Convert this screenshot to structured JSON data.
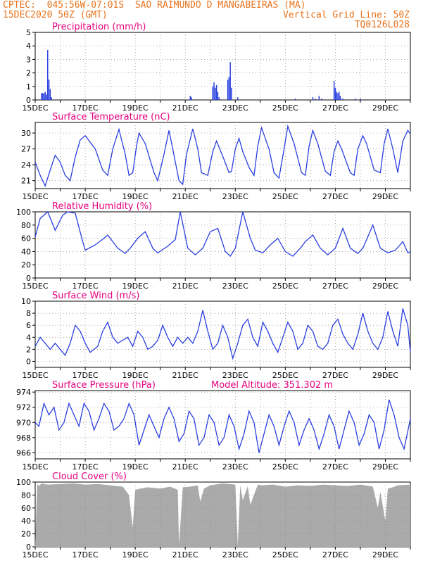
{
  "header": {
    "line1": "CPTEC:  045:56W-07:01S  SAO RAIMUNDO D MANGABEIRAS (MA)",
    "line2_left": "15DEC2020 50Z (GMT)",
    "line2_right": "Vertical Grid Line: 50Z",
    "line3_right": "TQ0126L028"
  },
  "colors": {
    "header": "#e8731c",
    "title": "#e6007e",
    "series": "#2a3fe0",
    "cloud": "#aaaaaa",
    "grid": "#888888"
  },
  "x_ticks": [
    "15DEC",
    "17DEC",
    "19DEC",
    "21DEC",
    "23DEC",
    "25DEC",
    "27DEC",
    "29DEC"
  ],
  "x_range_days": [
    15,
    30
  ],
  "chart_data": [
    {
      "type": "bar",
      "title": "Precipitation (mm/h)",
      "ylim": [
        0,
        5
      ],
      "yticks": [
        0,
        1,
        2,
        3,
        4,
        5
      ],
      "x": [
        15.25,
        15.3,
        15.35,
        15.4,
        15.45,
        15.5,
        15.55,
        15.6,
        15.65,
        21.2,
        21.25,
        22.1,
        22.15,
        22.2,
        22.25,
        22.3,
        22.35,
        22.7,
        22.75,
        22.8,
        22.85,
        23.1,
        25.4,
        26.1,
        26.2,
        26.35,
        26.45,
        26.95,
        27.0,
        27.05,
        27.1,
        27.15,
        27.2,
        27.3,
        27.8,
        28.0
      ],
      "values": [
        0.5,
        0.5,
        0.5,
        0.6,
        0.4,
        3.7,
        1.5,
        0.8,
        0.2,
        0.3,
        0.2,
        1.0,
        1.3,
        0.9,
        1.1,
        0.6,
        0.2,
        1.5,
        1.7,
        2.8,
        0.9,
        0.2,
        0.1,
        0.2,
        0.1,
        0.3,
        0.1,
        1.4,
        0.9,
        0.6,
        0.5,
        0.6,
        0.3,
        0.1,
        0.1,
        0.1
      ]
    },
    {
      "type": "line",
      "title": "Surface Temperature (nC)",
      "ylim": [
        19.5,
        32
      ],
      "yticks": [
        21,
        24,
        27,
        30
      ],
      "x": [
        15,
        15.2,
        15.4,
        15.6,
        15.8,
        16.0,
        16.2,
        16.4,
        16.6,
        16.8,
        17.0,
        17.4,
        17.7,
        17.9,
        18.1,
        18.35,
        18.6,
        18.75,
        18.9,
        19.05,
        19.15,
        19.4,
        19.75,
        19.9,
        20.15,
        20.35,
        20.5,
        20.75,
        20.9,
        21.05,
        21.3,
        21.5,
        21.65,
        21.9,
        22.1,
        22.25,
        22.55,
        22.75,
        22.85,
        23.0,
        23.15,
        23.3,
        23.55,
        23.75,
        23.9,
        24.05,
        24.35,
        24.55,
        24.75,
        24.95,
        25.1,
        25.35,
        25.65,
        25.8,
        25.95,
        26.1,
        26.3,
        26.6,
        26.8,
        26.95,
        27.1,
        27.25,
        27.6,
        27.75,
        27.9,
        28.1,
        28.25,
        28.55,
        28.8,
        28.95,
        29.1,
        29.3,
        29.5,
        29.7,
        29.9,
        30.0
      ],
      "values": [
        24.5,
        22.0,
        20.0,
        23.0,
        25.8,
        24.5,
        22.0,
        21.0,
        25.5,
        28.7,
        29.5,
        27.0,
        23.0,
        22.0,
        27.0,
        30.7,
        26.0,
        22.0,
        22.5,
        27.5,
        30.0,
        28.0,
        22.5,
        21.0,
        26.0,
        30.5,
        27.0,
        21.0,
        20.3,
        26.0,
        30.8,
        27.0,
        22.5,
        22.0,
        26.5,
        28.5,
        25.0,
        22.5,
        22.8,
        27.0,
        29.0,
        26.5,
        23.5,
        22.0,
        27.5,
        31.0,
        27.0,
        22.5,
        21.5,
        27.0,
        31.3,
        28.0,
        22.5,
        22.0,
        27.5,
        30.5,
        28.0,
        22.8,
        22.0,
        26.5,
        28.5,
        27.0,
        22.5,
        22.0,
        27.0,
        29.5,
        28.0,
        23.0,
        22.5,
        28.0,
        30.8,
        27.0,
        22.5,
        28.5,
        30.5,
        29.8
      ]
    },
    {
      "type": "line",
      "title": "Relative Humidity (%)",
      "ylim": [
        0,
        100
      ],
      "yticks": [
        0,
        20,
        40,
        60,
        80,
        100
      ],
      "x": [
        15,
        15.2,
        15.5,
        15.8,
        16.1,
        16.3,
        16.6,
        16.9,
        17.0,
        17.4,
        17.75,
        17.9,
        18.3,
        18.6,
        18.8,
        19.1,
        19.4,
        19.7,
        19.9,
        20.3,
        20.6,
        20.8,
        21.1,
        21.4,
        21.7,
        22.0,
        22.3,
        22.6,
        22.8,
        23.0,
        23.3,
        23.6,
        23.8,
        24.1,
        24.4,
        24.7,
        25.0,
        25.3,
        25.6,
        25.8,
        26.1,
        26.4,
        26.7,
        27.0,
        27.3,
        27.6,
        27.9,
        28.1,
        28.5,
        28.8,
        29.1,
        29.4,
        29.7,
        29.9,
        30.0
      ],
      "values": [
        62,
        90,
        100,
        72,
        95,
        100,
        98,
        55,
        42,
        50,
        60,
        65,
        45,
        37,
        45,
        60,
        70,
        45,
        38,
        48,
        58,
        100,
        45,
        35,
        45,
        70,
        75,
        40,
        33,
        45,
        100,
        60,
        42,
        38,
        50,
        60,
        40,
        33,
        45,
        55,
        65,
        45,
        35,
        45,
        75,
        45,
        37,
        45,
        80,
        45,
        38,
        42,
        55,
        38,
        40
      ]
    },
    {
      "type": "line",
      "title": "Surface Wind (m/s)",
      "ylim": [
        -1,
        10
      ],
      "yticks": [
        0,
        2,
        4,
        6,
        8,
        10
      ],
      "x": [
        15,
        15.2,
        15.4,
        15.6,
        15.8,
        16.0,
        16.2,
        16.4,
        16.6,
        16.8,
        17.0,
        17.2,
        17.5,
        17.7,
        17.9,
        18.1,
        18.3,
        18.5,
        18.7,
        18.9,
        19.1,
        19.3,
        19.5,
        19.7,
        19.9,
        20.1,
        20.3,
        20.5,
        20.7,
        20.9,
        21.1,
        21.3,
        21.5,
        21.7,
        21.9,
        22.1,
        22.3,
        22.5,
        22.7,
        22.9,
        23.1,
        23.3,
        23.5,
        23.7,
        23.9,
        24.1,
        24.3,
        24.5,
        24.7,
        24.9,
        25.1,
        25.3,
        25.5,
        25.7,
        25.9,
        26.1,
        26.3,
        26.5,
        26.7,
        26.9,
        27.1,
        27.3,
        27.5,
        27.7,
        27.9,
        28.1,
        28.3,
        28.5,
        28.7,
        28.9,
        29.1,
        29.3,
        29.5,
        29.7,
        29.9,
        30.0
      ],
      "values": [
        2.5,
        4.0,
        3.0,
        2.0,
        3.0,
        2.0,
        1.0,
        3.0,
        6.0,
        5.0,
        3.0,
        1.5,
        2.5,
        5.0,
        6.5,
        4.0,
        3.0,
        3.5,
        4.0,
        2.5,
        5.0,
        4.0,
        2.0,
        2.5,
        3.5,
        6.0,
        4.0,
        2.5,
        4.0,
        3.0,
        4.0,
        3.0,
        5.0,
        8.5,
        5.0,
        2.0,
        3.0,
        6.0,
        4.0,
        0.5,
        3.0,
        6.0,
        7.0,
        4.0,
        2.5,
        6.5,
        5.0,
        3.0,
        1.5,
        4.0,
        6.5,
        5.0,
        2.0,
        3.0,
        6.0,
        5.0,
        2.5,
        2.0,
        3.0,
        6.0,
        7.0,
        4.5,
        3.0,
        2.0,
        4.5,
        8.0,
        5.0,
        3.0,
        2.0,
        4.0,
        8.3,
        5.0,
        2.5,
        8.8,
        6.0,
        1.5
      ]
    },
    {
      "type": "line",
      "title": "Surface Pressure (hPa)",
      "subtitle": "Model Altitude: 351.302 m",
      "ylim": [
        965.2,
        974.2
      ],
      "yticks": [
        966,
        968,
        970,
        972,
        974
      ],
      "x": [
        15,
        15.15,
        15.35,
        15.55,
        15.75,
        15.95,
        16.15,
        16.35,
        16.55,
        16.75,
        16.95,
        17.15,
        17.35,
        17.55,
        17.75,
        17.95,
        18.15,
        18.35,
        18.55,
        18.75,
        18.95,
        19.15,
        19.35,
        19.55,
        19.75,
        19.95,
        20.15,
        20.35,
        20.55,
        20.75,
        20.95,
        21.15,
        21.35,
        21.55,
        21.75,
        21.95,
        22.15,
        22.35,
        22.55,
        22.75,
        22.95,
        23.15,
        23.35,
        23.55,
        23.75,
        23.95,
        24.15,
        24.35,
        24.55,
        24.75,
        24.95,
        25.15,
        25.35,
        25.55,
        25.75,
        25.95,
        26.15,
        26.35,
        26.55,
        26.75,
        26.95,
        27.15,
        27.35,
        27.55,
        27.75,
        27.95,
        28.15,
        28.35,
        28.55,
        28.75,
        28.95,
        29.15,
        29.35,
        29.55,
        29.75,
        30.0
      ],
      "values": [
        970.0,
        969.5,
        972.5,
        971.0,
        972.0,
        969.0,
        970.0,
        972.5,
        971.0,
        969.5,
        972.5,
        971.5,
        969.0,
        970.5,
        972.5,
        971.5,
        969.0,
        969.5,
        970.5,
        972.5,
        971.0,
        967.0,
        969.0,
        971.0,
        969.5,
        968.0,
        970.5,
        972.0,
        970.5,
        967.5,
        968.5,
        971.5,
        970.5,
        967.0,
        968.0,
        971.0,
        970.0,
        967.0,
        968.0,
        971.0,
        969.5,
        966.5,
        968.5,
        971.5,
        970.0,
        966.0,
        968.5,
        971.0,
        969.5,
        967.0,
        969.5,
        971.5,
        970.0,
        967.0,
        969.0,
        970.5,
        969.0,
        966.5,
        968.5,
        971.0,
        969.5,
        966.5,
        969.0,
        971.5,
        970.0,
        967.0,
        968.5,
        971.0,
        970.0,
        966.5,
        969.0,
        973.0,
        971.0,
        968.0,
        966.5,
        970.5
      ]
    },
    {
      "type": "area",
      "title": "Cloud Cover (%)",
      "ylim": [
        0,
        100
      ],
      "yticks": [
        0,
        20,
        40,
        60,
        80,
        100
      ],
      "x": [
        15.0,
        15.08,
        15.15,
        15.25,
        15.5,
        16.0,
        16.5,
        17.0,
        17.5,
        18.0,
        18.5,
        18.75,
        18.9,
        19.0,
        19.2,
        19.5,
        20.0,
        20.4,
        20.7,
        20.75,
        20.9,
        21.2,
        21.5,
        21.6,
        21.75,
        22.0,
        22.5,
        23.0,
        23.1,
        23.2,
        23.3,
        23.5,
        23.6,
        23.9,
        24.0,
        24.5,
        25.0,
        25.5,
        26.0,
        26.5,
        27.0,
        27.5,
        28.0,
        28.5,
        28.7,
        28.8,
        29.0,
        29.1,
        29.3,
        29.5,
        30.0
      ],
      "values": [
        3,
        97,
        94,
        98,
        96,
        97,
        98,
        96,
        97,
        95,
        93,
        80,
        30,
        88,
        90,
        92,
        90,
        93,
        88,
        3,
        92,
        93,
        95,
        70,
        90,
        95,
        98,
        96,
        3,
        95,
        72,
        94,
        65,
        96,
        95,
        96,
        93,
        95,
        94,
        96,
        95,
        94,
        96,
        93,
        60,
        85,
        40,
        90,
        92,
        95,
        96
      ]
    }
  ]
}
